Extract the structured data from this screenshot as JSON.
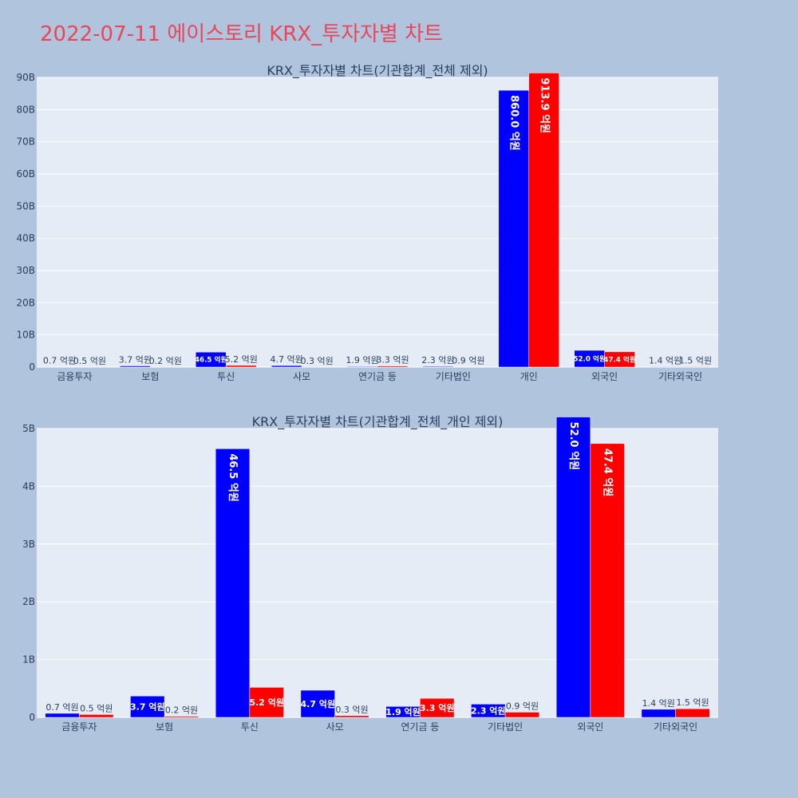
{
  "page_title": "2022-07-11 에이스토리 KRX_투자자별 차트",
  "colors": {
    "background": "#b0c4de",
    "plot_bg": "#e5ecf6",
    "title": "#e8475a",
    "series_a": "#0000ff",
    "series_b": "#ff0000",
    "text": "#2a3f5f"
  },
  "chart_data": [
    {
      "type": "bar",
      "title": "KRX_투자자별 차트(기관합계_전체 제외)",
      "categories": [
        "금융투자",
        "보험",
        "투신",
        "사모",
        "연기금 등",
        "기타법인",
        "개인",
        "외국인",
        "기타외국인"
      ],
      "series": [
        {
          "color": "#0000ff",
          "values": [
            0.07,
            0.37,
            4.65,
            0.47,
            0.19,
            0.23,
            86.0,
            5.2,
            0.14
          ],
          "labels": [
            "0.7 억원",
            "3.7 억원",
            "46.5 억원",
            "4.7 억원",
            "1.9 억원",
            "2.3 억원",
            "860.0 억원",
            "52.0 억원",
            "1.4 억원"
          ]
        },
        {
          "color": "#ff0000",
          "values": [
            0.05,
            0.02,
            0.52,
            0.03,
            0.33,
            0.09,
            91.39,
            4.74,
            0.15
          ],
          "labels": [
            "0.5 억원",
            "0.2 억원",
            "5.2 억원",
            "0.3 억원",
            "3.3 억원",
            "0.9 억원",
            "913.9 억원",
            "47.4 억원",
            "1.5 억원"
          ]
        }
      ],
      "y_unit": "B",
      "ylim": [
        0,
        90
      ],
      "yticks": [
        "0",
        "10B",
        "20B",
        "30B",
        "40B",
        "50B",
        "60B",
        "70B",
        "80B",
        "90B"
      ],
      "grid": true
    },
    {
      "type": "bar",
      "title": "KRX_투자자별 차트(기관합계_전체_개인 제외)",
      "categories": [
        "금융투자",
        "보험",
        "투신",
        "사모",
        "연기금 등",
        "기타법인",
        "외국인",
        "기타외국인"
      ],
      "series": [
        {
          "color": "#0000ff",
          "values": [
            0.07,
            0.37,
            4.65,
            0.47,
            0.19,
            0.23,
            5.2,
            0.14
          ],
          "labels": [
            "0.7 억원",
            "3.7 억원",
            "46.5 억원",
            "4.7 억원",
            "1.9 억원",
            "2.3 억원",
            "52.0 억원",
            "1.4 억원"
          ]
        },
        {
          "color": "#ff0000",
          "values": [
            0.05,
            0.02,
            0.52,
            0.03,
            0.33,
            0.09,
            4.74,
            0.15
          ],
          "labels": [
            "0.5 억원",
            "0.2 억원",
            "5.2 억원",
            "0.3 억원",
            "3.3 억원",
            "0.9 억원",
            "47.4 억원",
            "1.5 억원"
          ]
        }
      ],
      "y_unit": "B",
      "ylim": [
        0,
        5
      ],
      "yticks": [
        "0",
        "1B",
        "2B",
        "3B",
        "4B",
        "5B"
      ],
      "grid": true
    }
  ]
}
